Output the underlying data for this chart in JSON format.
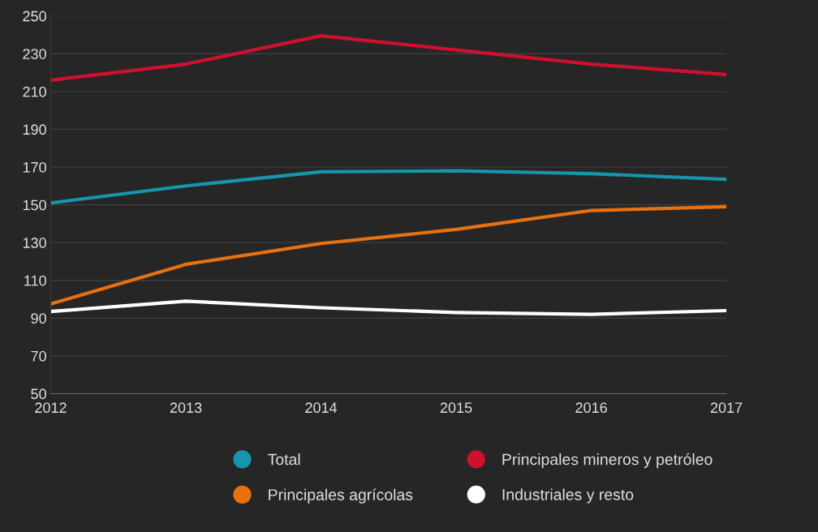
{
  "chart_data": {
    "type": "line",
    "x": [
      2012,
      2013,
      2014,
      2015,
      2016,
      2017
    ],
    "series": [
      {
        "name": "Total",
        "color": "#1596ad",
        "values": [
          151,
          160,
          167.5,
          168,
          166.5,
          163.5
        ]
      },
      {
        "name": "Principales agrícolas",
        "color": "#e8700f",
        "values": [
          97.5,
          118.5,
          129.5,
          137,
          147,
          149
        ]
      },
      {
        "name": "Principales mineros y petróleo",
        "color": "#d0102f",
        "values": [
          216,
          224.5,
          239.5,
          232,
          224.5,
          219
        ]
      },
      {
        "name": "Industriales y resto",
        "color": "#ffffff",
        "values": [
          93.5,
          99,
          95.5,
          93,
          92,
          94
        ]
      }
    ],
    "xlim": [
      2012,
      2017
    ],
    "xticks": [
      2012,
      2013,
      2014,
      2015,
      2016,
      2017
    ],
    "ylim": [
      50,
      250
    ],
    "yticks": [
      50,
      70,
      90,
      110,
      130,
      150,
      170,
      190,
      210,
      230,
      250
    ],
    "grid": "y",
    "legend": "bottom",
    "marker": "none",
    "line_style": "solid"
  }
}
